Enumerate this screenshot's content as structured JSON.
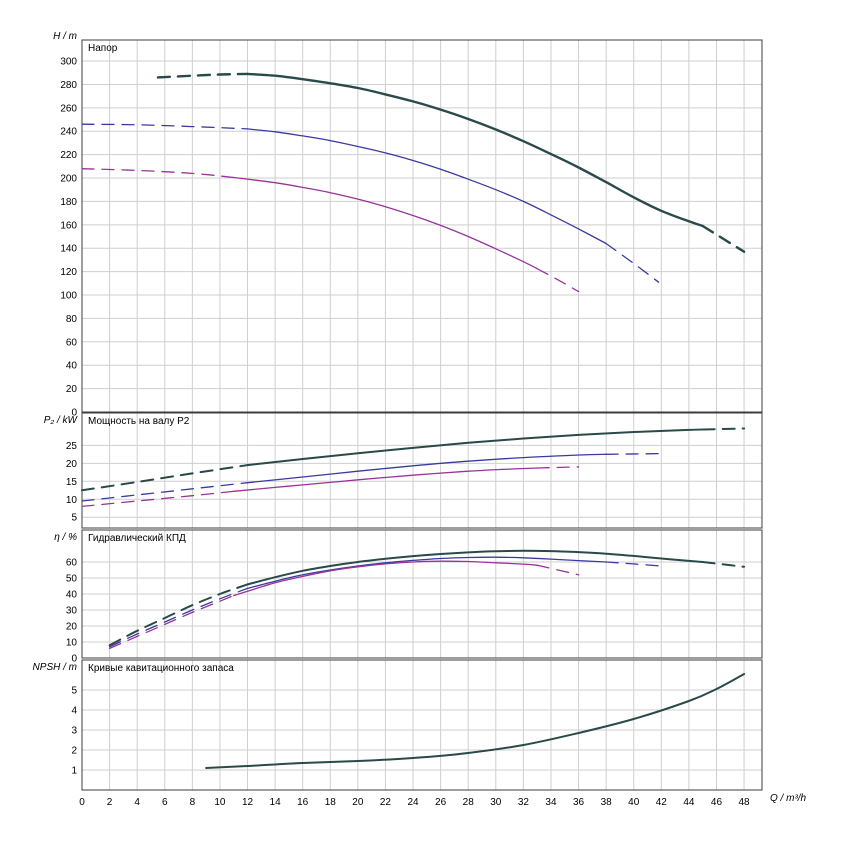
{
  "style": {
    "grid": "#cfcfcf",
    "border": "#3c3c3c",
    "background": "#ffffff",
    "dash": "12 8"
  },
  "x_axis": {
    "label": "Q / m³/h",
    "lim": [
      0,
      49.3
    ],
    "ticks": [
      0,
      2,
      4,
      6,
      8,
      10,
      12,
      14,
      16,
      18,
      20,
      22,
      24,
      26,
      28,
      30,
      32,
      34,
      36,
      38,
      40,
      42,
      44,
      46,
      48
    ]
  },
  "chart_data": [
    {
      "id": "head",
      "type": "line",
      "title": "Напор",
      "ylabel": "H / m",
      "ylim": [
        0,
        318
      ],
      "yticks": [
        0,
        20,
        40,
        60,
        80,
        100,
        120,
        140,
        160,
        180,
        200,
        220,
        240,
        260,
        280,
        300
      ],
      "series": [
        {
          "name": "head-speed-1",
          "color": "#2a4a4a",
          "width": 2.4,
          "dash_left": [
            [
              5.5,
              286
            ],
            [
              8,
              287.5
            ],
            [
              10,
              288.5
            ],
            [
              12,
              289
            ]
          ],
          "solid": [
            [
              12,
              289
            ],
            [
              14,
              287.5
            ],
            [
              16,
              284.5
            ],
            [
              18,
              281
            ],
            [
              20,
              277
            ],
            [
              22,
              271.5
            ],
            [
              24,
              265.5
            ],
            [
              26,
              258.5
            ],
            [
              28,
              250.5
            ],
            [
              30,
              241.5
            ],
            [
              32,
              231.5
            ],
            [
              34,
              220.5
            ],
            [
              36,
              209
            ],
            [
              38,
              196.5
            ],
            [
              40,
              183.5
            ],
            [
              42,
              172
            ],
            [
              44,
              163
            ],
            [
              45,
              159
            ]
          ],
          "dash_right": [
            [
              45,
              159
            ],
            [
              46.5,
              148
            ],
            [
              48,
              137
            ]
          ]
        },
        {
          "name": "head-speed-2",
          "color": "#3a3aa0",
          "width": 1.3,
          "dash_left": [
            [
              0,
              246
            ],
            [
              4,
              245.5
            ],
            [
              8,
              244
            ],
            [
              12,
              242
            ]
          ],
          "solid": [
            [
              12,
              242
            ],
            [
              14,
              239.5
            ],
            [
              16,
              236
            ],
            [
              18,
              232
            ],
            [
              20,
              227
            ],
            [
              22,
              221.5
            ],
            [
              24,
              215
            ],
            [
              26,
              207.5
            ],
            [
              28,
              199
            ],
            [
              30,
              190
            ],
            [
              32,
              180
            ],
            [
              34,
              168.5
            ],
            [
              36,
              156.5
            ],
            [
              38,
              144
            ]
          ],
          "dash_right": [
            [
              38,
              144
            ],
            [
              40,
              127
            ],
            [
              41.8,
              111
            ]
          ]
        },
        {
          "name": "head-speed-3",
          "color": "#993399",
          "width": 1.3,
          "dash_left": [
            [
              0,
              208
            ],
            [
              4,
              206.5
            ],
            [
              8,
              204
            ],
            [
              11,
              200.5
            ]
          ],
          "solid": [
            [
              11,
              200.5
            ],
            [
              14,
              196
            ],
            [
              16,
              192
            ],
            [
              18,
              187.5
            ],
            [
              20,
              182
            ],
            [
              22,
              175.5
            ],
            [
              24,
              168
            ],
            [
              26,
              159.5
            ],
            [
              28,
              150
            ],
            [
              30,
              139.5
            ],
            [
              32,
              128.5
            ],
            [
              33,
              122.5
            ]
          ],
          "dash_right": [
            [
              33,
              122.5
            ],
            [
              34.5,
              113
            ],
            [
              36,
              103
            ]
          ]
        }
      ]
    },
    {
      "id": "power",
      "type": "line",
      "title": "Мощность на валу P2",
      "ylabel": "P₂ / kW",
      "ylim": [
        2,
        34
      ],
      "yticks": [
        5,
        10,
        15,
        20,
        25
      ],
      "series": [
        {
          "name": "power-speed-1",
          "color": "#2a4a4a",
          "width": 2.0,
          "dash_left": [
            [
              0,
              12.5
            ],
            [
              4,
              14.8
            ],
            [
              8,
              17.2
            ],
            [
              12,
              19.5
            ]
          ],
          "solid": [
            [
              12,
              19.5
            ],
            [
              16,
              21.2
            ],
            [
              20,
              22.8
            ],
            [
              24,
              24.3
            ],
            [
              28,
              25.7
            ],
            [
              32,
              26.9
            ],
            [
              36,
              27.9
            ],
            [
              40,
              28.7
            ],
            [
              44,
              29.3
            ],
            [
              45,
              29.4
            ]
          ],
          "dash_right": [
            [
              45,
              29.4
            ],
            [
              48,
              29.7
            ]
          ]
        },
        {
          "name": "power-speed-2",
          "color": "#3a3aa0",
          "width": 1.3,
          "dash_left": [
            [
              0,
              9.5
            ],
            [
              4,
              11.2
            ],
            [
              8,
              12.9
            ],
            [
              12,
              14.6
            ]
          ],
          "solid": [
            [
              12,
              14.6
            ],
            [
              16,
              16.2
            ],
            [
              20,
              17.8
            ],
            [
              24,
              19.3
            ],
            [
              28,
              20.6
            ],
            [
              32,
              21.6
            ],
            [
              36,
              22.3
            ],
            [
              38,
              22.5
            ]
          ],
          "dash_right": [
            [
              38,
              22.5
            ],
            [
              42,
              22.7
            ]
          ]
        },
        {
          "name": "power-speed-3",
          "color": "#993399",
          "width": 1.3,
          "dash_left": [
            [
              0,
              8
            ],
            [
              4,
              9.5
            ],
            [
              8,
              11
            ],
            [
              11,
              12.2
            ]
          ],
          "solid": [
            [
              11,
              12.2
            ],
            [
              14,
              13.3
            ],
            [
              16,
              14
            ],
            [
              20,
              15.4
            ],
            [
              24,
              16.7
            ],
            [
              28,
              17.8
            ],
            [
              31,
              18.4
            ],
            [
              33,
              18.7
            ]
          ],
          "dash_right": [
            [
              33,
              18.7
            ],
            [
              36,
              19
            ]
          ]
        }
      ]
    },
    {
      "id": "efficiency",
      "type": "line",
      "title": "Гидравлический КПД",
      "ylabel": "η / %",
      "ylim": [
        0,
        80
      ],
      "yticks": [
        0,
        10,
        20,
        30,
        40,
        50,
        60
      ],
      "series": [
        {
          "name": "eff-speed-1",
          "color": "#2a4a4a",
          "width": 2.0,
          "dash_left": [
            [
              2,
              8
            ],
            [
              4,
              17
            ],
            [
              6,
              25
            ],
            [
              8,
              33
            ],
            [
              10,
              40
            ],
            [
              12,
              46
            ]
          ],
          "solid": [
            [
              12,
              46
            ],
            [
              14,
              50.5
            ],
            [
              16,
              54.5
            ],
            [
              18,
              57.5
            ],
            [
              20,
              60
            ],
            [
              22,
              62
            ],
            [
              24,
              63.7
            ],
            [
              26,
              65
            ],
            [
              28,
              66
            ],
            [
              30,
              66.7
            ],
            [
              32,
              67
            ],
            [
              34,
              66.8
            ],
            [
              36,
              66.2
            ],
            [
              38,
              65.2
            ],
            [
              40,
              63.8
            ],
            [
              42,
              62.2
            ],
            [
              44,
              60.7
            ],
            [
              45,
              60
            ]
          ],
          "dash_right": [
            [
              45,
              60
            ],
            [
              46.5,
              58.5
            ],
            [
              48,
              57
            ]
          ]
        },
        {
          "name": "eff-speed-2",
          "color": "#3a3aa0",
          "width": 1.3,
          "dash_left": [
            [
              2,
              7
            ],
            [
              4,
              15
            ],
            [
              6,
              22.5
            ],
            [
              8,
              30
            ],
            [
              10,
              37
            ],
            [
              12,
              43.5
            ]
          ],
          "solid": [
            [
              12,
              43.5
            ],
            [
              14,
              48
            ],
            [
              16,
              52
            ],
            [
              18,
              55
            ],
            [
              20,
              57.5
            ],
            [
              22,
              59.5
            ],
            [
              24,
              61
            ],
            [
              26,
              62.2
            ],
            [
              28,
              62.8
            ],
            [
              30,
              63
            ],
            [
              32,
              62.6
            ],
            [
              34,
              61.8
            ],
            [
              36,
              60.9
            ],
            [
              38,
              60
            ]
          ],
          "dash_right": [
            [
              38,
              60
            ],
            [
              40,
              58.8
            ],
            [
              42,
              57.5
            ]
          ]
        },
        {
          "name": "eff-speed-3",
          "color": "#993399",
          "width": 1.3,
          "dash_left": [
            [
              2,
              6
            ],
            [
              4,
              13.5
            ],
            [
              6,
              21
            ],
            [
              8,
              28.5
            ],
            [
              10,
              35.5
            ],
            [
              11,
              39
            ]
          ],
          "solid": [
            [
              11,
              39
            ],
            [
              14,
              47
            ],
            [
              16,
              51
            ],
            [
              18,
              54.5
            ],
            [
              20,
              57
            ],
            [
              22,
              58.8
            ],
            [
              24,
              60
            ],
            [
              26,
              60.5
            ],
            [
              28,
              60.3
            ],
            [
              30,
              59.5
            ],
            [
              32,
              58.7
            ],
            [
              33,
              58
            ]
          ],
          "dash_right": [
            [
              33,
              58
            ],
            [
              34.5,
              55
            ],
            [
              36,
              52
            ]
          ]
        }
      ]
    },
    {
      "id": "npsh",
      "type": "line",
      "title": "Кривые кавитационного запаса",
      "ylabel": "NPSH / m",
      "ylim": [
        0,
        6.5
      ],
      "yticks": [
        1,
        2,
        3,
        4,
        5
      ],
      "series": [
        {
          "name": "npsh-curve",
          "color": "#2a4a4a",
          "width": 2.0,
          "solid": [
            [
              9,
              1.1
            ],
            [
              12,
              1.2
            ],
            [
              16,
              1.35
            ],
            [
              20,
              1.45
            ],
            [
              24,
              1.6
            ],
            [
              28,
              1.85
            ],
            [
              32,
              2.25
            ],
            [
              36,
              2.85
            ],
            [
              40,
              3.55
            ],
            [
              44,
              4.45
            ],
            [
              46,
              5.05
            ],
            [
              48,
              5.8
            ]
          ]
        }
      ]
    }
  ]
}
